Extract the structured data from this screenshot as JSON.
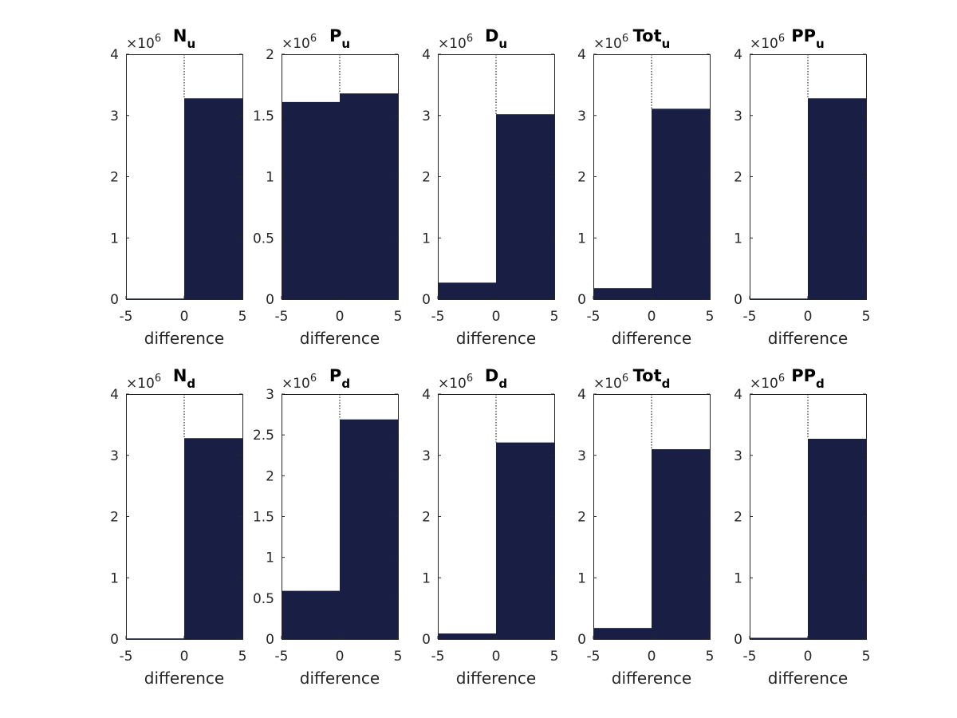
{
  "colors": {
    "bar": "#181e44",
    "axis": "#262626",
    "background": "#ffffff"
  },
  "chart_data": [
    {
      "type": "bar",
      "title_main": "N",
      "title_sub": "u",
      "multiplier_base": "×10",
      "multiplier_exp": "6",
      "bin_edges": [
        -5,
        0,
        5
      ],
      "values": [
        0.01,
        3.28
      ],
      "xlabel": "difference",
      "xlim": [
        -5,
        5
      ],
      "ylim": [
        0,
        4
      ],
      "xticks": [
        -5,
        0,
        5
      ],
      "yticks": [
        0,
        1,
        2,
        3,
        4
      ],
      "ytick_labels": [
        "0",
        "1",
        "2",
        "3",
        "4"
      ],
      "zero_line": "dotted"
    },
    {
      "type": "bar",
      "title_main": "P",
      "title_sub": "u",
      "multiplier_base": "×10",
      "multiplier_exp": "6",
      "bin_edges": [
        -5,
        0,
        5
      ],
      "values": [
        1.61,
        1.68
      ],
      "xlabel": "difference",
      "xlim": [
        -5,
        5
      ],
      "ylim": [
        0,
        2
      ],
      "xticks": [
        -5,
        0,
        5
      ],
      "yticks": [
        0,
        0.5,
        1,
        1.5,
        2
      ],
      "ytick_labels": [
        "0",
        "0.5",
        "1",
        "1.5",
        "2"
      ],
      "zero_line": "dotted"
    },
    {
      "type": "bar",
      "title_main": "D",
      "title_sub": "u",
      "multiplier_base": "×10",
      "multiplier_exp": "6",
      "bin_edges": [
        -5,
        0,
        5
      ],
      "values": [
        0.27,
        3.02
      ],
      "xlabel": "difference",
      "xlim": [
        -5,
        5
      ],
      "ylim": [
        0,
        4
      ],
      "xticks": [
        -5,
        0,
        5
      ],
      "yticks": [
        0,
        1,
        2,
        3,
        4
      ],
      "ytick_labels": [
        "0",
        "1",
        "2",
        "3",
        "4"
      ],
      "zero_line": "dotted"
    },
    {
      "type": "bar",
      "title_main": "Tot",
      "title_sub": "u",
      "multiplier_base": "×10",
      "multiplier_exp": "6",
      "bin_edges": [
        -5,
        0,
        5
      ],
      "values": [
        0.18,
        3.11
      ],
      "xlabel": "difference",
      "xlim": [
        -5,
        5
      ],
      "ylim": [
        0,
        4
      ],
      "xticks": [
        -5,
        0,
        5
      ],
      "yticks": [
        0,
        1,
        2,
        3,
        4
      ],
      "ytick_labels": [
        "0",
        "1",
        "2",
        "3",
        "4"
      ],
      "zero_line": "dotted"
    },
    {
      "type": "bar",
      "title_main": "PP",
      "title_sub": "u",
      "multiplier_base": "×10",
      "multiplier_exp": "6",
      "bin_edges": [
        -5,
        0,
        5
      ],
      "values": [
        0.01,
        3.28
      ],
      "xlabel": "difference",
      "xlim": [
        -5,
        5
      ],
      "ylim": [
        0,
        4
      ],
      "xticks": [
        -5,
        0,
        5
      ],
      "yticks": [
        0,
        1,
        2,
        3,
        4
      ],
      "ytick_labels": [
        "0",
        "1",
        "2",
        "3",
        "4"
      ],
      "zero_line": "dotted"
    },
    {
      "type": "bar",
      "title_main": "N",
      "title_sub": "d",
      "multiplier_base": "×10",
      "multiplier_exp": "6",
      "bin_edges": [
        -5,
        0,
        5
      ],
      "values": [
        0.01,
        3.28
      ],
      "xlabel": "difference",
      "xlim": [
        -5,
        5
      ],
      "ylim": [
        0,
        4
      ],
      "xticks": [
        -5,
        0,
        5
      ],
      "yticks": [
        0,
        1,
        2,
        3,
        4
      ],
      "ytick_labels": [
        "0",
        "1",
        "2",
        "3",
        "4"
      ],
      "zero_line": "dotted"
    },
    {
      "type": "bar",
      "title_main": "P",
      "title_sub": "d",
      "multiplier_base": "×10",
      "multiplier_exp": "6",
      "bin_edges": [
        -5,
        0,
        5
      ],
      "values": [
        0.59,
        2.69
      ],
      "xlabel": "difference",
      "xlim": [
        -5,
        5
      ],
      "ylim": [
        0,
        3
      ],
      "xticks": [
        -5,
        0,
        5
      ],
      "yticks": [
        0,
        0.5,
        1,
        1.5,
        2,
        2.5,
        3
      ],
      "ytick_labels": [
        "0",
        "0.5",
        "1",
        "1.5",
        "2",
        "2.5",
        "3"
      ],
      "zero_line": "dotted"
    },
    {
      "type": "bar",
      "title_main": "D",
      "title_sub": "d",
      "multiplier_base": "×10",
      "multiplier_exp": "6",
      "bin_edges": [
        -5,
        0,
        5
      ],
      "values": [
        0.09,
        3.21
      ],
      "xlabel": "difference",
      "xlim": [
        -5,
        5
      ],
      "ylim": [
        0,
        4
      ],
      "xticks": [
        -5,
        0,
        5
      ],
      "yticks": [
        0,
        1,
        2,
        3,
        4
      ],
      "ytick_labels": [
        "0",
        "1",
        "2",
        "3",
        "4"
      ],
      "zero_line": "dotted"
    },
    {
      "type": "bar",
      "title_main": "Tot",
      "title_sub": "d",
      "multiplier_base": "×10",
      "multiplier_exp": "6",
      "bin_edges": [
        -5,
        0,
        5
      ],
      "values": [
        0.18,
        3.1
      ],
      "xlabel": "difference",
      "xlim": [
        -5,
        5
      ],
      "ylim": [
        0,
        4
      ],
      "xticks": [
        -5,
        0,
        5
      ],
      "yticks": [
        0,
        1,
        2,
        3,
        4
      ],
      "ytick_labels": [
        "0",
        "1",
        "2",
        "3",
        "4"
      ],
      "zero_line": "dotted"
    },
    {
      "type": "bar",
      "title_main": "PP",
      "title_sub": "d",
      "multiplier_base": "×10",
      "multiplier_exp": "6",
      "bin_edges": [
        -5,
        0,
        5
      ],
      "values": [
        0.02,
        3.27
      ],
      "xlabel": "difference",
      "xlim": [
        -5,
        5
      ],
      "ylim": [
        0,
        4
      ],
      "xticks": [
        -5,
        0,
        5
      ],
      "yticks": [
        0,
        1,
        2,
        3,
        4
      ],
      "ytick_labels": [
        "0",
        "1",
        "2",
        "3",
        "4"
      ],
      "zero_line": "dotted"
    }
  ]
}
